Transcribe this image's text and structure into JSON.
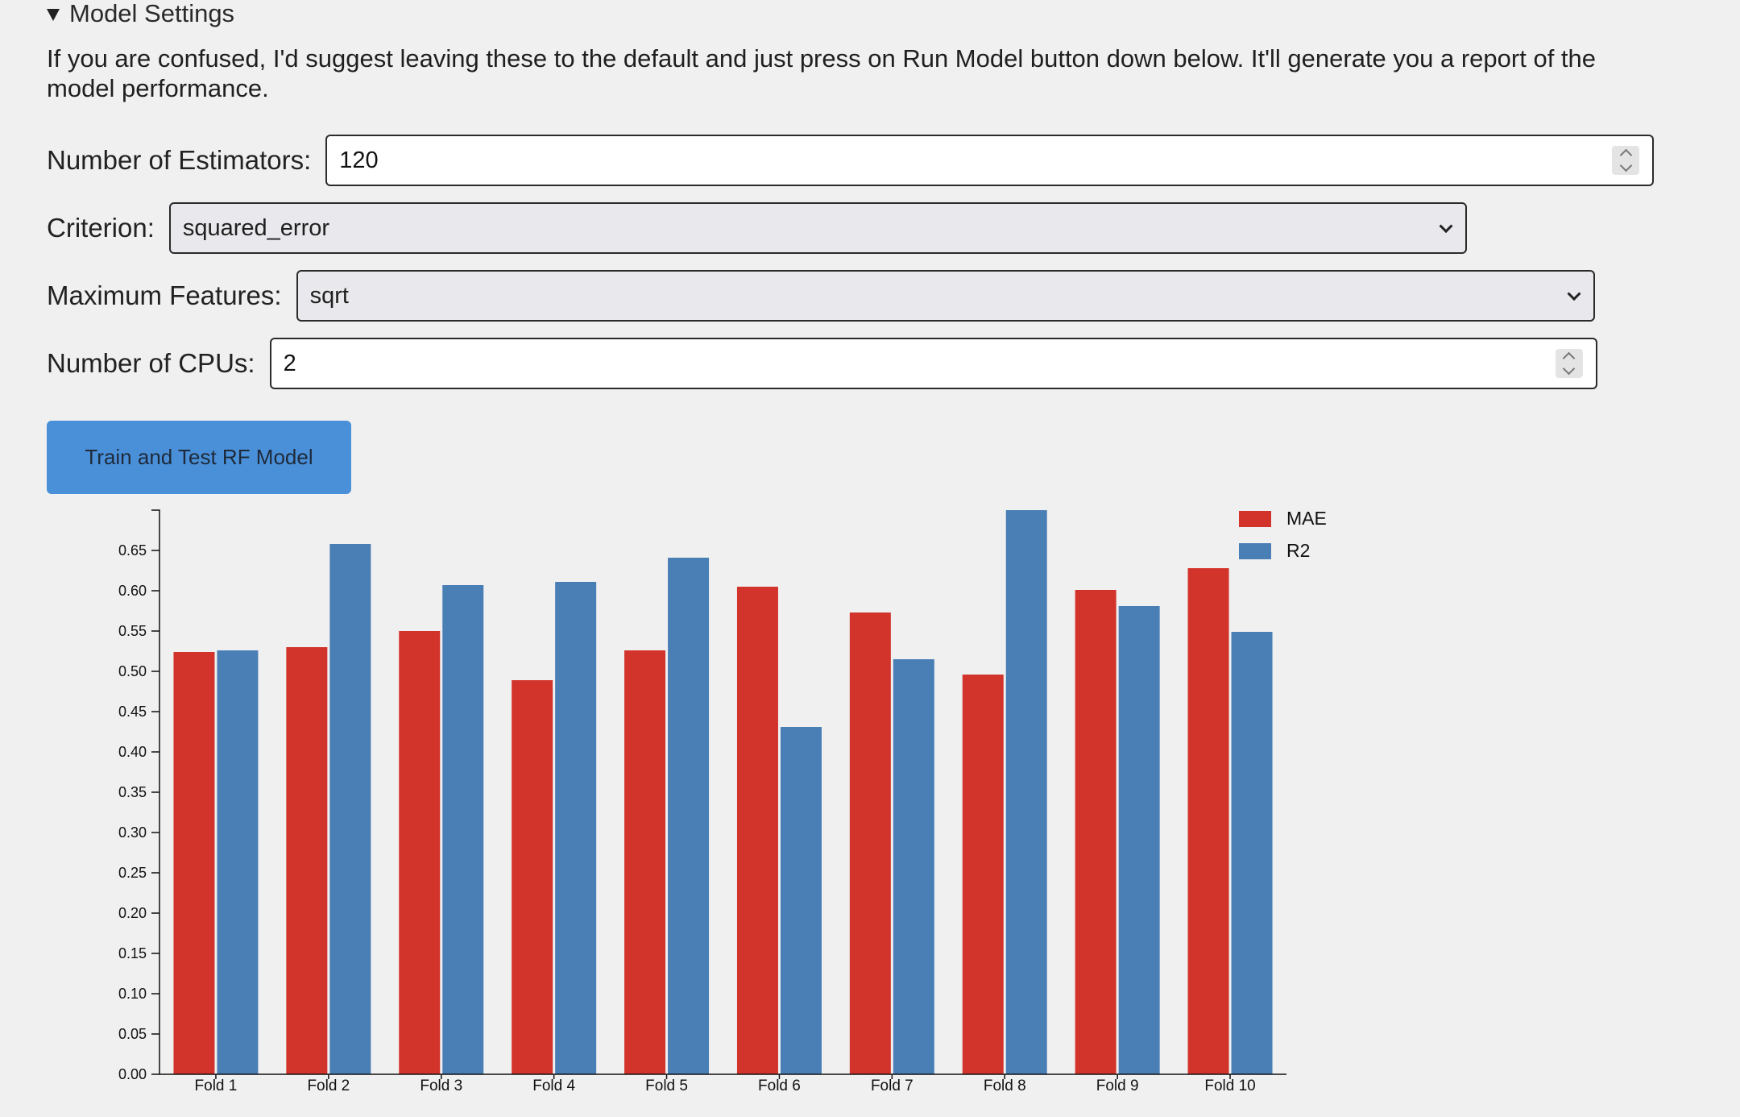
{
  "section": {
    "title": "Model Settings",
    "description": "If you are confused, I'd suggest leaving these to the default and just press on Run Model button down below. It'll generate you a report of the model performance."
  },
  "fields": {
    "estimators": {
      "label": "Number of Estimators:",
      "value": "120"
    },
    "criterion": {
      "label": "Criterion:",
      "value": "squared_error"
    },
    "max_features": {
      "label": "Maximum Features:",
      "value": "sqrt"
    },
    "cpus": {
      "label": "Number of CPUs:",
      "value": "2"
    }
  },
  "run_button": {
    "label": "Train and Test RF Model",
    "color": "#4a90d9"
  },
  "chart_data": {
    "type": "bar",
    "categories": [
      "Fold 1",
      "Fold 2",
      "Fold 3",
      "Fold 4",
      "Fold 5",
      "Fold 6",
      "Fold 7",
      "Fold 8",
      "Fold 9",
      "Fold 10"
    ],
    "series": [
      {
        "name": "MAE",
        "color": "#d2342c",
        "values": [
          0.524,
          0.53,
          0.55,
          0.489,
          0.526,
          0.605,
          0.573,
          0.496,
          0.601,
          0.628
        ]
      },
      {
        "name": "R2",
        "color": "#4a7fb6",
        "values": [
          0.526,
          0.658,
          0.607,
          0.611,
          0.641,
          0.431,
          0.515,
          0.7,
          0.581,
          0.549
        ]
      }
    ],
    "yticks": [
      "0.00",
      "0.05",
      "0.10",
      "0.15",
      "0.20",
      "0.25",
      "0.30",
      "0.35",
      "0.40",
      "0.45",
      "0.50",
      "0.55",
      "0.60",
      "0.65"
    ],
    "ylim": [
      0,
      0.7
    ],
    "grid": false,
    "legend_position": "top-right"
  }
}
